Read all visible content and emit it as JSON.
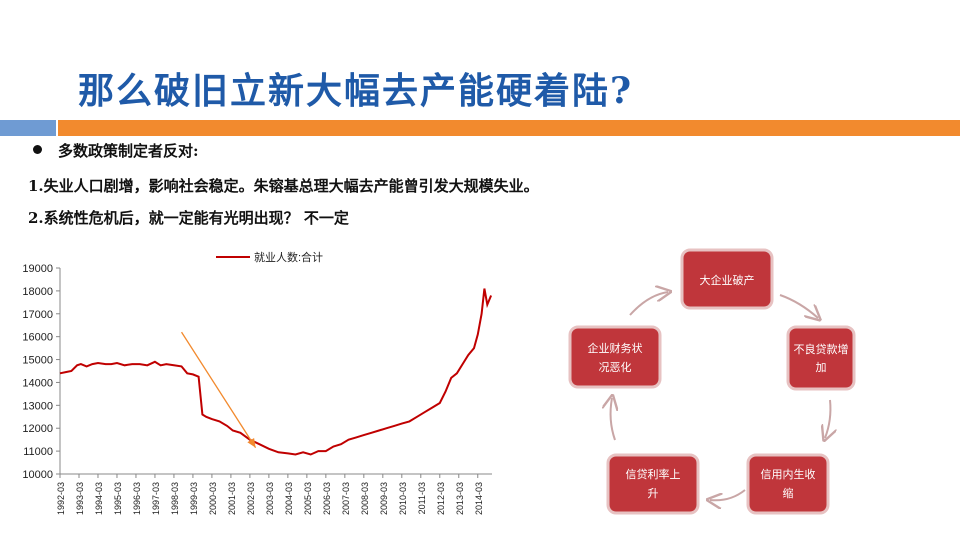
{
  "title": "那么破旧立新大幅去产能硬着陆?",
  "bullets": {
    "intro": "多数政策制定者反对:",
    "point1": "1.失业人口剧增，影响社会稳定。朱镕基总理大幅去产能曾引发大规模失业。",
    "point2": "2.系统性危机后，就一定能有光明出现？ 不一定"
  },
  "colors": {
    "title": "#1f5aa8",
    "accent_orange": "#f28a2e",
    "accent_blue": "#6f9bd3",
    "series": "#c00000",
    "cycle_box": "#c0363b"
  },
  "chart_data": {
    "type": "line",
    "title": "",
    "xlabel": "",
    "ylabel": "",
    "legend": "top-center",
    "grid": false,
    "ylim": [
      10000,
      19000
    ],
    "y_ticks": [
      "19000",
      "18000",
      "17000",
      "16000",
      "15000",
      "14000",
      "13000",
      "12000",
      "11000",
      "10000"
    ],
    "x_ticks": [
      "1992-03",
      "1993-03",
      "1994-03",
      "1995-03",
      "1996-03",
      "1997-03",
      "1998-03",
      "1999-03",
      "2000-03",
      "2001-03",
      "2002-03",
      "2003-03",
      "2004-03",
      "2005-03",
      "2006-03",
      "2007-03",
      "2008-03",
      "2009-03",
      "2010-03",
      "2011-03",
      "2012-03",
      "2013-03",
      "2014-03"
    ],
    "series": [
      {
        "name": "就业人数:合计",
        "points": [
          [
            1992.0,
            14400
          ],
          [
            1992.3,
            14450
          ],
          [
            1992.6,
            14500
          ],
          [
            1992.9,
            14750
          ],
          [
            1993.1,
            14800
          ],
          [
            1993.4,
            14700
          ],
          [
            1993.7,
            14800
          ],
          [
            1994.0,
            14850
          ],
          [
            1994.4,
            14800
          ],
          [
            1994.7,
            14800
          ],
          [
            1995.0,
            14850
          ],
          [
            1995.4,
            14750
          ],
          [
            1995.8,
            14800
          ],
          [
            1996.2,
            14800
          ],
          [
            1996.6,
            14750
          ],
          [
            1997.0,
            14900
          ],
          [
            1997.3,
            14750
          ],
          [
            1997.6,
            14800
          ],
          [
            1998.0,
            14750
          ],
          [
            1998.4,
            14700
          ],
          [
            1998.7,
            14400
          ],
          [
            1999.0,
            14350
          ],
          [
            1999.3,
            14250
          ],
          [
            1999.5,
            12600
          ],
          [
            1999.7,
            12500
          ],
          [
            2000.0,
            12400
          ],
          [
            2000.4,
            12300
          ],
          [
            2000.8,
            12100
          ],
          [
            2001.1,
            11900
          ],
          [
            2001.5,
            11800
          ],
          [
            2002.0,
            11500
          ],
          [
            2002.5,
            11300
          ],
          [
            2003.0,
            11100
          ],
          [
            2003.5,
            10950
          ],
          [
            2004.0,
            10900
          ],
          [
            2004.4,
            10850
          ],
          [
            2004.8,
            10950
          ],
          [
            2005.2,
            10850
          ],
          [
            2005.6,
            11000
          ],
          [
            2006.0,
            11000
          ],
          [
            2006.4,
            11200
          ],
          [
            2006.8,
            11300
          ],
          [
            2007.2,
            11500
          ],
          [
            2007.6,
            11600
          ],
          [
            2008.0,
            11700
          ],
          [
            2008.4,
            11800
          ],
          [
            2008.8,
            11900
          ],
          [
            2009.2,
            12000
          ],
          [
            2009.6,
            12100
          ],
          [
            2010.0,
            12200
          ],
          [
            2010.4,
            12300
          ],
          [
            2010.8,
            12500
          ],
          [
            2011.2,
            12700
          ],
          [
            2011.6,
            12900
          ],
          [
            2012.0,
            13100
          ],
          [
            2012.3,
            13600
          ],
          [
            2012.6,
            14200
          ],
          [
            2012.9,
            14400
          ],
          [
            2013.2,
            14800
          ],
          [
            2013.5,
            15200
          ],
          [
            2013.8,
            15500
          ],
          [
            2014.0,
            16100
          ],
          [
            2014.2,
            17000
          ],
          [
            2014.35,
            18100
          ],
          [
            2014.5,
            17400
          ],
          [
            2014.7,
            17800
          ]
        ]
      }
    ],
    "annotation": {
      "type": "trend-arrow",
      "from": [
        1998.4,
        16200
      ],
      "to": [
        2002.3,
        11150
      ],
      "color": "#f28a2e"
    }
  },
  "cycle": {
    "boxes": [
      "大企业破产",
      "不良贷款增加",
      "信用内生收缩",
      "信贷利率上升",
      "企业财务状况恶化"
    ]
  }
}
